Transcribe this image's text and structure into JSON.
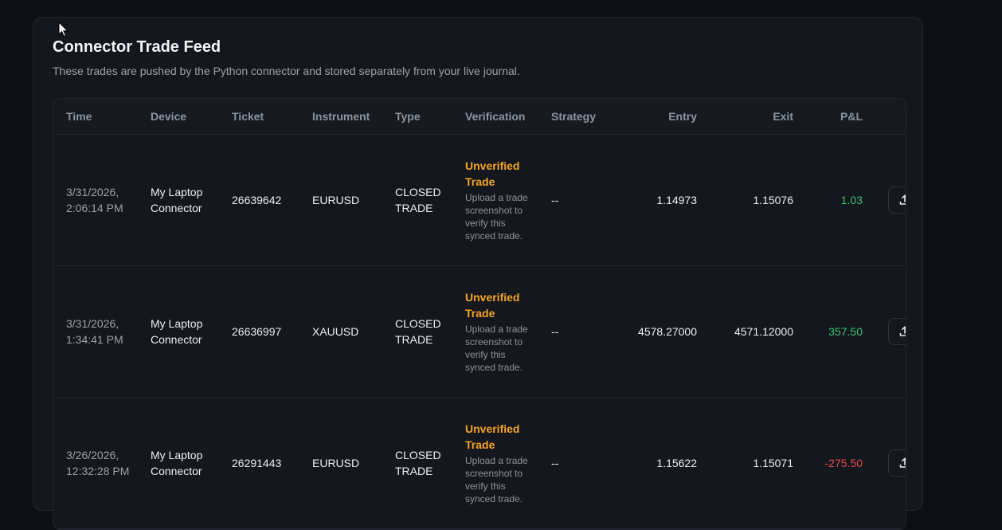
{
  "header": {
    "title": "Connector Trade Feed",
    "subtitle": "These trades are pushed by the Python connector and stored separately from your live journal."
  },
  "table": {
    "columns": [
      "Time",
      "Device",
      "Ticket",
      "Instrument",
      "Type",
      "Verification",
      "Strategy",
      "Entry",
      "Exit",
      "P&L"
    ],
    "rows": [
      {
        "time": "3/31/2026, 2:06:14 PM",
        "device": "My Laptop Connector",
        "ticket": "26639642",
        "instrument": "EURUSD",
        "type": "CLOSED TRADE",
        "verification_status": "Unverified Trade",
        "verification_note": "Upload a trade screenshot to verify this synced trade.",
        "strategy": "--",
        "entry": "1.14973",
        "exit": "1.15076",
        "pnl": "1.03"
      },
      {
        "time": "3/31/2026, 1:34:41 PM",
        "device": "My Laptop Connector",
        "ticket": "26636997",
        "instrument": "XAUUSD",
        "type": "CLOSED TRADE",
        "verification_status": "Unverified Trade",
        "verification_note": "Upload a trade screenshot to verify this synced trade.",
        "strategy": "--",
        "entry": "4578.27000",
        "exit": "4571.12000",
        "pnl": "357.50"
      },
      {
        "time": "3/26/2026, 12:32:28 PM",
        "device": "My Laptop Connector",
        "ticket": "26291443",
        "instrument": "EURUSD",
        "type": "CLOSED TRADE",
        "verification_status": "Unverified Trade",
        "verification_note": "Upload a trade screenshot to verify this synced trade.",
        "strategy": "--",
        "entry": "1.15622",
        "exit": "1.15071",
        "pnl": "-275.50"
      }
    ]
  },
  "icons": {
    "upload": "upload-icon",
    "cursor": "mouse-pointer-icon"
  },
  "colors": {
    "background": "#0c0f14",
    "card": "#14171d",
    "unverified": "#f5a524",
    "profit": "#34c472",
    "loss": "#e5484d"
  }
}
